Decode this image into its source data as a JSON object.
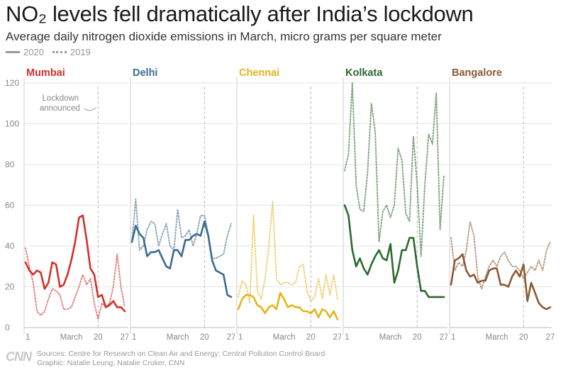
{
  "title": "NO₂ levels fell dramatically after India’s lockdown",
  "subtitle": "Average daily nitrogen dioxide emissions in March, micro grams per square meter",
  "legend": {
    "label_2020": "2020",
    "label_2019": "2019"
  },
  "annotation": {
    "line1": "Lockdown",
    "line2": "announced"
  },
  "footer": {
    "logo": "CNN",
    "sources": "Sources: Centre for Research on Clean Air and Energy; Central Pollution Control Board",
    "graphic": "Graphic: Natalie Leung; Natalie Croker, CNN"
  },
  "chart_data": {
    "type": "line",
    "ylim": [
      0,
      120
    ],
    "yticks": [
      0,
      20,
      40,
      60,
      80,
      100,
      120
    ],
    "xlim": [
      1,
      27
    ],
    "xticks": [
      {
        "day": 1,
        "label": "1"
      },
      {
        "day": 13,
        "label": "March"
      },
      {
        "day": 20,
        "label": "20"
      },
      {
        "day": 27,
        "label": "27"
      }
    ],
    "lockdown_day": 20,
    "panels": [
      {
        "city": "Mumbai",
        "color": "#d0312d",
        "series_2020": [
          32,
          28,
          26,
          28,
          27,
          19,
          22,
          32,
          31,
          20,
          21,
          26,
          33,
          42,
          54,
          55,
          43,
          29,
          26,
          15,
          16,
          10,
          11,
          13,
          10,
          10,
          8
        ],
        "series_2019": [
          39,
          30,
          22,
          8,
          6,
          8,
          14,
          19,
          18,
          16,
          9,
          9,
          10,
          15,
          20,
          26,
          21,
          24,
          12,
          4,
          12,
          10,
          12,
          20,
          36,
          20,
          10
        ]
      },
      {
        "city": "Delhi",
        "color": "#3d6b8e",
        "series_2020": [
          42,
          50,
          46,
          44,
          35,
          37,
          37,
          38,
          34,
          30,
          29,
          38,
          38,
          35,
          43,
          43,
          45,
          46,
          45,
          52,
          45,
          33,
          28,
          27,
          26,
          16,
          15
        ],
        "series_2019": [
          42,
          63,
          38,
          40,
          48,
          52,
          51,
          40,
          46,
          51,
          40,
          38,
          58,
          44,
          45,
          48,
          40,
          46,
          55,
          55,
          46,
          34,
          34,
          35,
          36,
          45,
          51
        ]
      },
      {
        "city": "Chennai",
        "color": "#e2b51c",
        "series_2020": [
          9,
          14,
          16,
          16,
          15,
          11,
          10,
          7,
          10,
          11,
          9,
          17,
          14,
          10,
          11,
          10,
          10,
          8,
          8,
          7,
          9,
          5,
          9,
          8,
          5,
          8,
          4
        ],
        "series_2019": [
          15,
          23,
          21,
          12,
          55,
          18,
          14,
          24,
          40,
          62,
          24,
          21,
          22,
          22,
          21,
          22,
          30,
          31,
          18,
          13,
          15,
          24,
          14,
          26,
          16,
          26,
          14
        ]
      },
      {
        "city": "Kolkata",
        "color": "#2b6a2f",
        "series_2020": [
          60,
          55,
          38,
          30,
          34,
          29,
          26,
          31,
          35,
          38,
          34,
          33,
          41,
          22,
          28,
          38,
          38,
          44,
          44,
          30,
          18,
          18,
          15,
          15,
          15,
          15,
          15
        ],
        "series_2019": [
          77,
          85,
          120,
          70,
          58,
          57,
          76,
          110,
          96,
          42,
          57,
          60,
          54,
          60,
          88,
          82,
          56,
          52,
          94,
          70,
          35,
          70,
          95,
          90,
          115,
          48,
          75
        ]
      },
      {
        "city": "Bangalore",
        "color": "#8a5a35",
        "series_2020": [
          21,
          33,
          34,
          36,
          28,
          25,
          26,
          22,
          23,
          23,
          28,
          29,
          29,
          21,
          21,
          20,
          25,
          28,
          25,
          31,
          13,
          22,
          17,
          12,
          10,
          9,
          10
        ],
        "series_2019": [
          44,
          28,
          32,
          30,
          38,
          52,
          45,
          25,
          19,
          25,
          30,
          33,
          30,
          35,
          37,
          33,
          30,
          30,
          28,
          24,
          27,
          30,
          28,
          33,
          28,
          38,
          42
        ]
      }
    ]
  }
}
